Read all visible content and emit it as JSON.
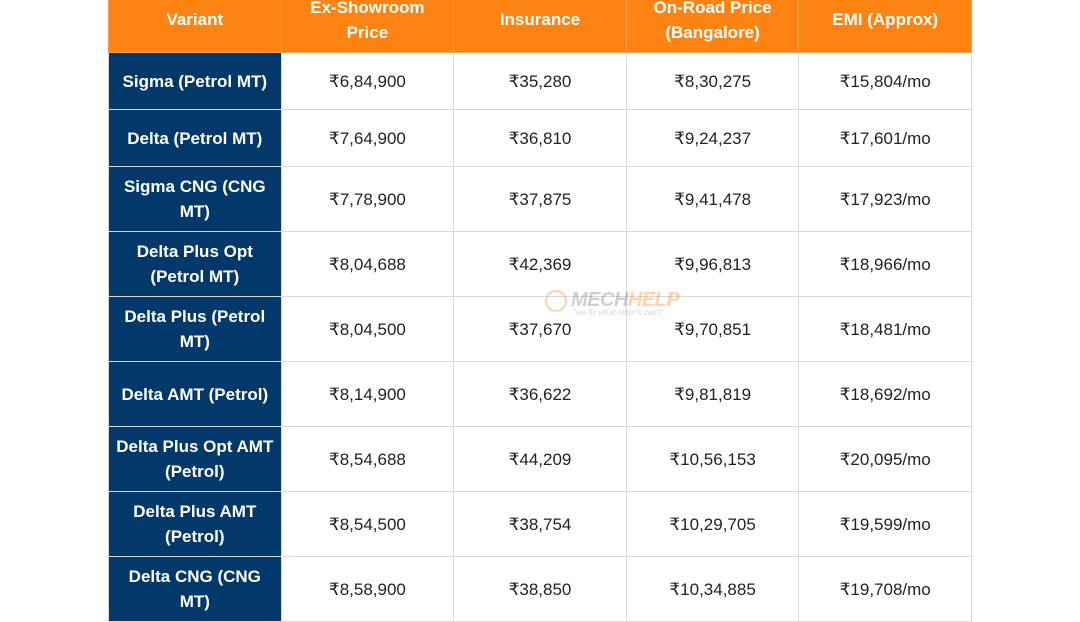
{
  "table": {
    "headers": [
      "Variant",
      "Ex-Showroom Price",
      "Insurance",
      "On-Road Price (Bangalore)",
      "EMI (Approx)"
    ],
    "rows": [
      [
        "Sigma (Petrol MT)",
        "₹6,84,900",
        "₹35,280",
        "₹8,30,275",
        "₹15,804/mo"
      ],
      [
        "Delta (Petrol MT)",
        "₹7,64,900",
        "₹36,810",
        "₹9,24,237",
        "₹17,601/mo"
      ],
      [
        "Sigma CNG (CNG MT)",
        "₹7,78,900",
        "₹37,875",
        "₹9,41,478",
        "₹17,923/mo"
      ],
      [
        "Delta Plus Opt (Petrol MT)",
        "₹8,04,688",
        "₹42,369",
        "₹9,96,813",
        "₹18,966/mo"
      ],
      [
        "Delta Plus (Petrol MT)",
        "₹8,04,500",
        "₹37,670",
        "₹9,70,851",
        "₹18,481/mo"
      ],
      [
        "Delta AMT (Petrol)",
        "₹8,14,900",
        "₹36,622",
        "₹9,81,819",
        "₹18,692/mo"
      ],
      [
        "Delta Plus Opt AMT (Petrol)",
        "₹8,54,688",
        "₹44,209",
        "₹10,56,153",
        "₹20,095/mo"
      ],
      [
        "Delta Plus AMT (Petrol)",
        "₹8,54,500",
        "₹38,754",
        "₹10,29,705",
        "₹19,599/mo"
      ],
      [
        "Delta CNG (CNG MT)",
        "₹8,58,900",
        "₹38,850",
        "₹10,34,885",
        "₹19,708/mo"
      ]
    ]
  },
  "watermark": {
    "brand_part1": "MECH",
    "brand_part2": "HELP",
    "tagline": "\"we fix what other's can't\""
  },
  "colors": {
    "header_bg": "#fd8412",
    "variant_bg": "#02386a"
  }
}
